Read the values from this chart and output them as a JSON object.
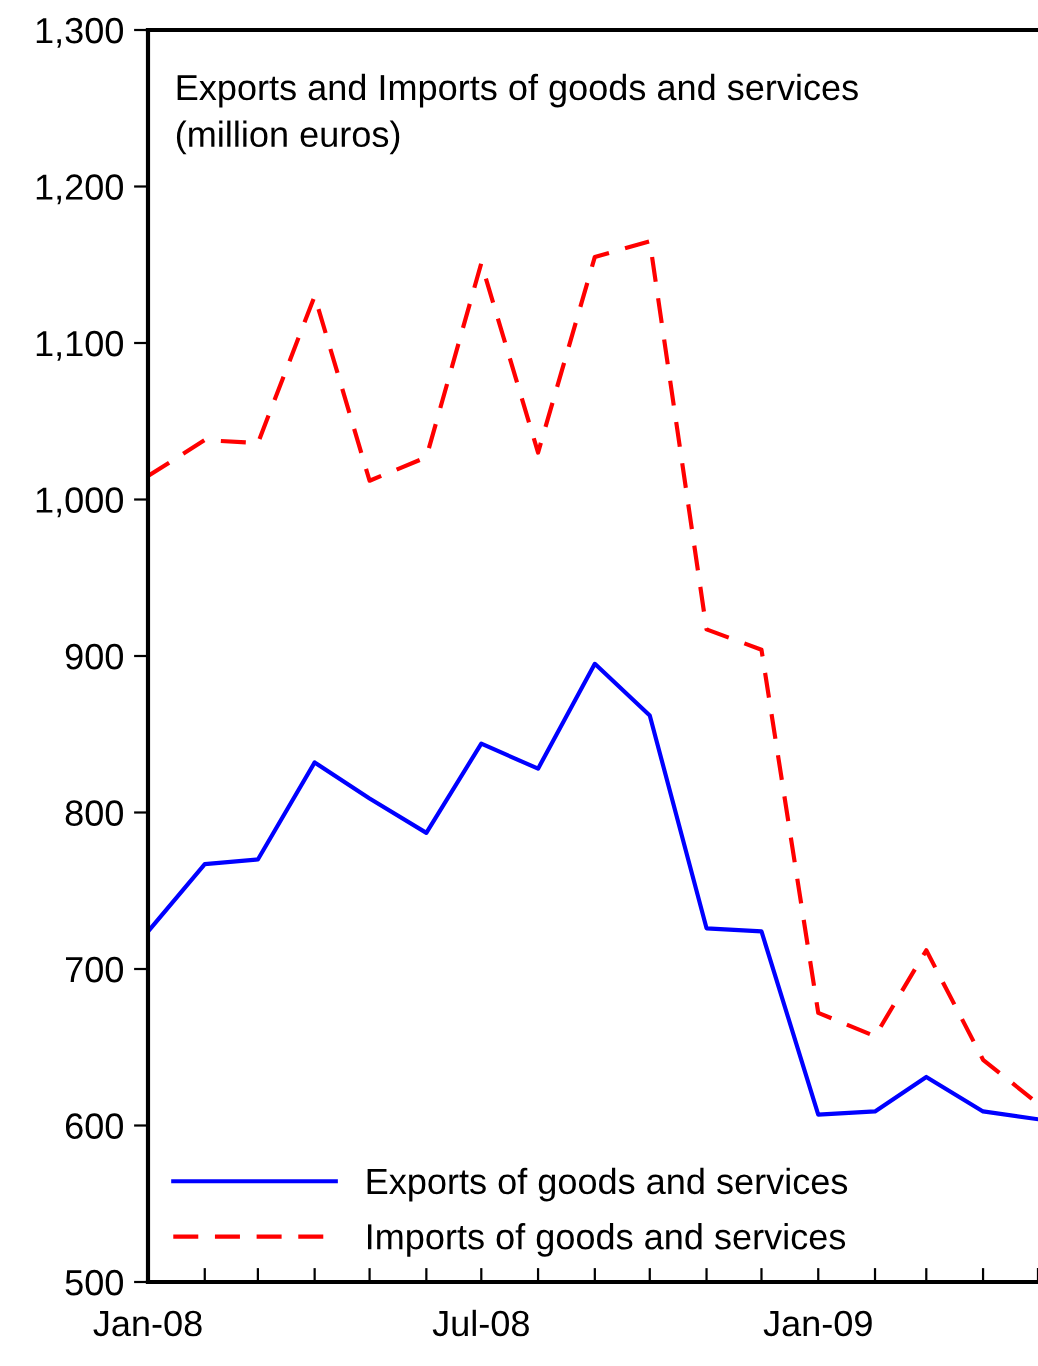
{
  "chart_data": {
    "type": "line",
    "title": "Exports and Imports of goods and services\n(million euros)",
    "x": [
      "2008-01",
      "2008-02",
      "2008-03",
      "2008-04",
      "2008-05",
      "2008-06",
      "2008-07",
      "2008-08",
      "2008-09",
      "2008-10",
      "2008-11",
      "2008-12",
      "2009-01",
      "2009-02",
      "2009-03",
      "2009-04",
      "2009-05"
    ],
    "series": [
      {
        "name": "Exports of goods and services",
        "color": "#0000ff",
        "line_style": "solid",
        "values": [
          724,
          767,
          770,
          832,
          809,
          787,
          844,
          828,
          895,
          862,
          726,
          724,
          607,
          609,
          631,
          609,
          604
        ]
      },
      {
        "name": "Imports of goods and services",
        "color": "#ff0000",
        "line_style": "dashed",
        "values": [
          1015,
          1038,
          1036,
          1130,
          1012,
          1027,
          1151,
          1030,
          1155,
          1165,
          917,
          904,
          672,
          657,
          712,
          642,
          614
        ]
      }
    ],
    "xlim": [
      "2008-01",
      "2009-05"
    ],
    "xticks": [
      {
        "value": "2008-01",
        "label": "Jan-08"
      },
      {
        "value": "2008-02",
        "label": null
      },
      {
        "value": "2008-03",
        "label": null
      },
      {
        "value": "2008-04",
        "label": null
      },
      {
        "value": "2008-05",
        "label": null
      },
      {
        "value": "2008-06",
        "label": null
      },
      {
        "value": "2008-07",
        "label": "Jul-08"
      },
      {
        "value": "2008-08",
        "label": null
      },
      {
        "value": "2008-09",
        "label": null
      },
      {
        "value": "2008-10",
        "label": null
      },
      {
        "value": "2008-11",
        "label": null
      },
      {
        "value": "2008-12",
        "label": null
      },
      {
        "value": "2009-01",
        "label": "Jan-09"
      },
      {
        "value": "2009-02",
        "label": null
      },
      {
        "value": "2009-03",
        "label": null
      },
      {
        "value": "2009-04",
        "label": null
      },
      {
        "value": "2009-05",
        "label": null
      }
    ],
    "ylim": [
      500,
      1300
    ],
    "yticks": [
      {
        "value": 500,
        "label": "500"
      },
      {
        "value": 600,
        "label": "600"
      },
      {
        "value": 700,
        "label": "700"
      },
      {
        "value": 800,
        "label": "800"
      },
      {
        "value": 900,
        "label": "900"
      },
      {
        "value": 1000,
        "label": "1,000"
      },
      {
        "value": 1100,
        "label": "1,100"
      },
      {
        "value": 1200,
        "label": "1,200"
      },
      {
        "value": 1300,
        "label": "1,300"
      }
    ],
    "grid": false,
    "legend": "bottom left",
    "marker": "none"
  }
}
